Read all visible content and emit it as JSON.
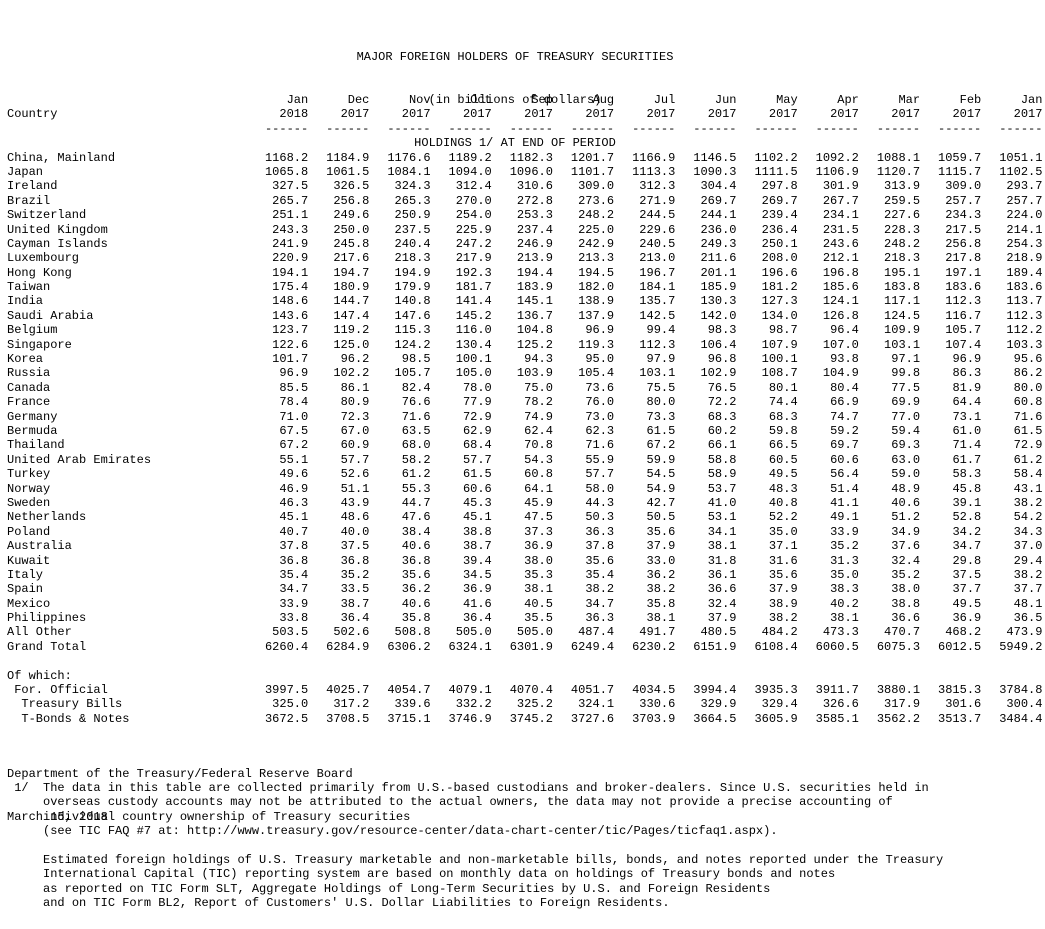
{
  "header": {
    "line1": "MAJOR FOREIGN HOLDERS OF TREASURY SECURITIES",
    "line2": "(in billions of dollars)",
    "line3": "HOLDINGS 1/ AT END OF PERIOD"
  },
  "table": {
    "country_label": "Country",
    "months": [
      "Jan",
      "Dec",
      "Nov",
      "Oct",
      "Sep",
      "Aug",
      "Jul",
      "Jun",
      "May",
      "Apr",
      "Mar",
      "Feb",
      "Jan"
    ],
    "years": [
      "2018",
      "2017",
      "2017",
      "2017",
      "2017",
      "2017",
      "2017",
      "2017",
      "2017",
      "2017",
      "2017",
      "2017",
      "2017"
    ],
    "dash": "------",
    "rows": [
      {
        "name": "China, Mainland",
        "v": [
          "1168.2",
          "1184.9",
          "1176.6",
          "1189.2",
          "1182.3",
          "1201.7",
          "1166.9",
          "1146.5",
          "1102.2",
          "1092.2",
          "1088.1",
          "1059.7",
          "1051.1"
        ]
      },
      {
        "name": "Japan",
        "v": [
          "1065.8",
          "1061.5",
          "1084.1",
          "1094.0",
          "1096.0",
          "1101.7",
          "1113.3",
          "1090.3",
          "1111.5",
          "1106.9",
          "1120.7",
          "1115.7",
          "1102.5"
        ]
      },
      {
        "name": "Ireland",
        "v": [
          "327.5",
          "326.5",
          "324.3",
          "312.4",
          "310.6",
          "309.0",
          "312.3",
          "304.4",
          "297.8",
          "301.9",
          "313.9",
          "309.0",
          "293.7"
        ]
      },
      {
        "name": "Brazil",
        "v": [
          "265.7",
          "256.8",
          "265.3",
          "270.0",
          "272.8",
          "273.6",
          "271.9",
          "269.7",
          "269.7",
          "267.7",
          "259.5",
          "257.7",
          "257.7"
        ]
      },
      {
        "name": "Switzerland",
        "v": [
          "251.1",
          "249.6",
          "250.9",
          "254.0",
          "253.3",
          "248.2",
          "244.5",
          "244.1",
          "239.4",
          "234.1",
          "227.6",
          "234.3",
          "224.0"
        ]
      },
      {
        "name": "United Kingdom",
        "v": [
          "243.3",
          "250.0",
          "237.5",
          "225.9",
          "237.4",
          "225.0",
          "229.6",
          "236.0",
          "236.4",
          "231.5",
          "228.3",
          "217.5",
          "214.1"
        ]
      },
      {
        "name": "Cayman Islands",
        "v": [
          "241.9",
          "245.8",
          "240.4",
          "247.2",
          "246.9",
          "242.9",
          "240.5",
          "249.3",
          "250.1",
          "243.6",
          "248.2",
          "256.8",
          "254.3"
        ]
      },
      {
        "name": "Luxembourg",
        "v": [
          "220.9",
          "217.6",
          "218.3",
          "217.9",
          "213.9",
          "213.3",
          "213.0",
          "211.6",
          "208.0",
          "212.1",
          "218.3",
          "217.8",
          "218.9"
        ]
      },
      {
        "name": "Hong Kong",
        "v": [
          "194.1",
          "194.7",
          "194.9",
          "192.3",
          "194.4",
          "194.5",
          "196.7",
          "201.1",
          "196.6",
          "196.8",
          "195.1",
          "197.1",
          "189.4"
        ]
      },
      {
        "name": "Taiwan",
        "v": [
          "175.4",
          "180.9",
          "179.9",
          "181.7",
          "183.9",
          "182.0",
          "184.1",
          "185.9",
          "181.2",
          "185.6",
          "183.8",
          "183.6",
          "183.6"
        ]
      },
      {
        "name": "India",
        "v": [
          "148.6",
          "144.7",
          "140.8",
          "141.4",
          "145.1",
          "138.9",
          "135.7",
          "130.3",
          "127.3",
          "124.1",
          "117.1",
          "112.3",
          "113.7"
        ]
      },
      {
        "name": "Saudi Arabia",
        "v": [
          "143.6",
          "147.4",
          "147.6",
          "145.2",
          "136.7",
          "137.9",
          "142.5",
          "142.0",
          "134.0",
          "126.8",
          "124.5",
          "116.7",
          "112.3"
        ]
      },
      {
        "name": "Belgium",
        "v": [
          "123.7",
          "119.2",
          "115.3",
          "116.0",
          "104.8",
          "96.9",
          "99.4",
          "98.3",
          "98.7",
          "96.4",
          "109.9",
          "105.7",
          "112.2"
        ]
      },
      {
        "name": "Singapore",
        "v": [
          "122.6",
          "125.0",
          "124.2",
          "130.4",
          "125.2",
          "119.3",
          "112.3",
          "106.4",
          "107.9",
          "107.0",
          "103.1",
          "107.4",
          "103.3"
        ]
      },
      {
        "name": "Korea",
        "v": [
          "101.7",
          "96.2",
          "98.5",
          "100.1",
          "94.3",
          "95.0",
          "97.9",
          "96.8",
          "100.1",
          "93.8",
          "97.1",
          "96.9",
          "95.6"
        ]
      },
      {
        "name": "Russia",
        "v": [
          "96.9",
          "102.2",
          "105.7",
          "105.0",
          "103.9",
          "105.4",
          "103.1",
          "102.9",
          "108.7",
          "104.9",
          "99.8",
          "86.3",
          "86.2"
        ]
      },
      {
        "name": "Canada",
        "v": [
          "85.5",
          "86.1",
          "82.4",
          "78.0",
          "75.0",
          "73.6",
          "75.5",
          "76.5",
          "80.1",
          "80.4",
          "77.5",
          "81.9",
          "80.0"
        ]
      },
      {
        "name": "France",
        "v": [
          "78.4",
          "80.9",
          "76.6",
          "77.9",
          "78.2",
          "76.0",
          "80.0",
          "72.2",
          "74.4",
          "66.9",
          "69.9",
          "64.4",
          "60.8"
        ]
      },
      {
        "name": "Germany",
        "v": [
          "71.0",
          "72.3",
          "71.6",
          "72.9",
          "74.9",
          "73.0",
          "73.3",
          "68.3",
          "68.3",
          "74.7",
          "77.0",
          "73.1",
          "71.6"
        ]
      },
      {
        "name": "Bermuda",
        "v": [
          "67.5",
          "67.0",
          "63.5",
          "62.9",
          "62.4",
          "62.3",
          "61.5",
          "60.2",
          "59.8",
          "59.2",
          "59.4",
          "61.0",
          "61.5"
        ]
      },
      {
        "name": "Thailand",
        "v": [
          "67.2",
          "60.9",
          "68.0",
          "68.4",
          "70.8",
          "71.6",
          "67.2",
          "66.1",
          "66.5",
          "69.7",
          "69.3",
          "71.4",
          "72.9"
        ]
      },
      {
        "name": "United Arab Emirates",
        "v": [
          "55.1",
          "57.7",
          "58.2",
          "57.7",
          "54.3",
          "55.9",
          "59.9",
          "58.8",
          "60.5",
          "60.6",
          "63.0",
          "61.7",
          "61.2"
        ]
      },
      {
        "name": "Turkey",
        "v": [
          "49.6",
          "52.6",
          "61.2",
          "61.5",
          "60.8",
          "57.7",
          "54.5",
          "58.9",
          "49.5",
          "56.4",
          "59.0",
          "58.3",
          "58.4"
        ]
      },
      {
        "name": "Norway",
        "v": [
          "46.9",
          "51.1",
          "55.3",
          "60.6",
          "64.1",
          "58.0",
          "54.9",
          "53.7",
          "48.3",
          "51.4",
          "48.9",
          "45.8",
          "43.1"
        ]
      },
      {
        "name": "Sweden",
        "v": [
          "46.3",
          "43.9",
          "44.7",
          "45.3",
          "45.9",
          "44.3",
          "42.7",
          "41.0",
          "40.8",
          "41.1",
          "40.6",
          "39.1",
          "38.2"
        ]
      },
      {
        "name": "Netherlands",
        "v": [
          "45.1",
          "48.6",
          "47.6",
          "45.1",
          "47.5",
          "50.3",
          "50.5",
          "53.1",
          "52.2",
          "49.1",
          "51.2",
          "52.8",
          "54.2"
        ]
      },
      {
        "name": "Poland",
        "v": [
          "40.7",
          "40.0",
          "38.4",
          "38.8",
          "37.3",
          "36.3",
          "35.6",
          "34.1",
          "35.0",
          "33.9",
          "34.9",
          "34.2",
          "34.3"
        ]
      },
      {
        "name": "Australia",
        "v": [
          "37.8",
          "37.5",
          "40.6",
          "38.7",
          "36.9",
          "37.8",
          "37.9",
          "38.1",
          "37.1",
          "35.2",
          "37.6",
          "34.7",
          "37.0"
        ]
      },
      {
        "name": "Kuwait",
        "v": [
          "36.8",
          "36.8",
          "36.8",
          "39.4",
          "38.0",
          "35.6",
          "33.0",
          "31.8",
          "31.6",
          "31.3",
          "32.4",
          "29.8",
          "29.4"
        ]
      },
      {
        "name": "Italy",
        "v": [
          "35.4",
          "35.2",
          "35.6",
          "34.5",
          "35.3",
          "35.4",
          "36.2",
          "36.1",
          "35.6",
          "35.0",
          "35.2",
          "37.5",
          "38.2"
        ]
      },
      {
        "name": "Spain",
        "v": [
          "34.7",
          "33.5",
          "36.2",
          "36.9",
          "38.1",
          "38.2",
          "38.2",
          "36.6",
          "37.9",
          "38.3",
          "38.0",
          "37.7",
          "37.7"
        ]
      },
      {
        "name": "Mexico",
        "v": [
          "33.9",
          "38.7",
          "40.6",
          "41.6",
          "40.5",
          "34.7",
          "35.8",
          "32.4",
          "38.9",
          "40.2",
          "38.8",
          "49.5",
          "48.1"
        ]
      },
      {
        "name": "Philippines",
        "v": [
          "33.8",
          "36.4",
          "35.8",
          "36.4",
          "35.5",
          "36.3",
          "38.1",
          "37.9",
          "38.2",
          "38.1",
          "36.6",
          "36.9",
          "36.5"
        ]
      },
      {
        "name": "All Other",
        "v": [
          "503.5",
          "502.6",
          "508.8",
          "505.0",
          "505.0",
          "487.4",
          "491.7",
          "480.5",
          "484.2",
          "473.3",
          "470.7",
          "468.2",
          "473.9"
        ]
      },
      {
        "name": "Grand Total",
        "v": [
          "6260.4",
          "6284.9",
          "6306.2",
          "6324.1",
          "6301.9",
          "6249.4",
          "6230.2",
          "6151.9",
          "6108.4",
          "6060.5",
          "6075.3",
          "6012.5",
          "5949.2"
        ]
      }
    ],
    "of_which_label": "Of which:",
    "sub_rows": [
      {
        "name": " For. Official",
        "v": [
          "3997.5",
          "4025.7",
          "4054.7",
          "4079.1",
          "4070.4",
          "4051.7",
          "4034.5",
          "3994.4",
          "3935.3",
          "3911.7",
          "3880.1",
          "3815.3",
          "3784.8"
        ]
      },
      {
        "name": "  Treasury Bills",
        "v": [
          "325.0",
          "317.2",
          "339.6",
          "332.2",
          "325.2",
          "324.1",
          "330.6",
          "329.9",
          "329.4",
          "326.6",
          "317.9",
          "301.6",
          "300.4"
        ]
      },
      {
        "name": "  T-Bonds & Notes",
        "v": [
          "3672.5",
          "3708.5",
          "3715.1",
          "3746.9",
          "3745.2",
          "3727.6",
          "3703.9",
          "3664.5",
          "3605.9",
          "3585.1",
          "3562.2",
          "3513.7",
          "3484.4"
        ]
      }
    ]
  },
  "footer": {
    "source": "Department of the Treasury/Federal Reserve Board",
    "date": "March 15, 2018",
    "note_marker": " 1/",
    "note_lines": [
      "The data in this table are collected primarily from U.S.-based custodians and broker-dealers. Since U.S. securities held in",
      "overseas custody accounts may not be attributed to the actual owners, the data may not provide a precise accounting of",
      "individual country ownership of Treasury securities",
      "(see TIC FAQ #7 at: http://www.treasury.gov/resource-center/data-chart-center/tic/Pages/ticfaq1.aspx)."
    ],
    "est_lines": [
      "Estimated foreign holdings of U.S. Treasury marketable and non-marketable bills, bonds, and notes reported under the Treasury",
      "International Capital (TIC) reporting system are based on monthly data on holdings of Treasury bonds and notes",
      "as reported on TIC Form SLT, Aggregate Holdings of Long-Term Securities by U.S. and Foreign Residents",
      "and on TIC Form BL2, Report of Customers' U.S. Dollar Liabilities to Foreign Residents."
    ]
  }
}
